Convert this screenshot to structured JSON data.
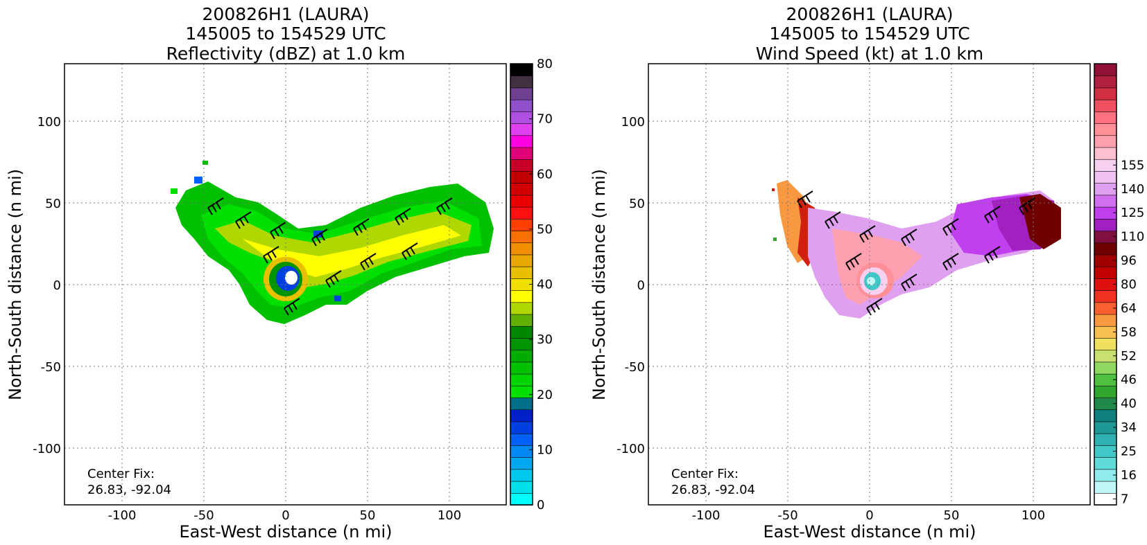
{
  "chart_data": [
    {
      "type": "heatmap",
      "title_lines": [
        "200826H1 (LAURA)",
        "145005 to 154529 UTC",
        "Reflectivity (dBZ) at 1.0 km"
      ],
      "xlabel": "East-West distance (n mi)",
      "ylabel": "North-South distance (n mi)",
      "xlim": [
        -135,
        135
      ],
      "ylim": [
        -135,
        135
      ],
      "xticks": [
        -100,
        -50,
        0,
        50,
        100
      ],
      "yticks": [
        -100,
        -50,
        0,
        50,
        100
      ],
      "grid": true,
      "annotation": [
        "Center Fix:",
        "26.83, -92.04"
      ],
      "colorbar": {
        "range": [
          0,
          80
        ],
        "ticks": [
          0,
          10,
          20,
          30,
          40,
          50,
          60,
          70,
          80
        ],
        "colors": [
          "#00ffff",
          "#00e0e8",
          "#00c8ec",
          "#00a8f0",
          "#0088f4",
          "#0060f8",
          "#0040e0",
          "#0020c8",
          "#007088",
          "#00e000",
          "#00d400",
          "#00c000",
          "#00ac00",
          "#009400",
          "#008800",
          "#60b000",
          "#b0d800",
          "#ffff00",
          "#f0e000",
          "#e8c000",
          "#e8a800",
          "#f09000",
          "#f87000",
          "#ff4000",
          "#ff1010",
          "#e80000",
          "#d00000",
          "#c00000",
          "#c80028",
          "#e00078",
          "#ff00e0",
          "#e040f0",
          "#b050e0",
          "#9050c8",
          "#704090",
          "#403040",
          "#000000"
        ]
      },
      "data_summary": "Radar reflectivity field around hurricane eye; 20-40 dBZ spiral bands extending east-northeast, eye near (0,0)"
    },
    {
      "type": "heatmap",
      "title_lines": [
        "200826H1 (LAURA)",
        "145005 to 154529 UTC",
        "Wind Speed (kt) at 1.0 km"
      ],
      "xlabel": "East-West distance (n mi)",
      "ylabel": "North-South distance (n mi)",
      "xlim": [
        -135,
        135
      ],
      "ylim": [
        -135,
        135
      ],
      "xticks": [
        -100,
        -50,
        0,
        50,
        100
      ],
      "yticks": [
        -100,
        -50,
        0,
        50,
        100
      ],
      "grid": true,
      "annotation": [
        "Center Fix:",
        "26.83, -92.04"
      ],
      "colorbar": {
        "tick_labels": [
          "7",
          "16",
          "25",
          "34",
          "40",
          "46",
          "52",
          "58",
          "64",
          "80",
          "96",
          "110",
          "125",
          "140",
          "155"
        ],
        "tick_bins": [
          0,
          2,
          4,
          6,
          8,
          10,
          12,
          14,
          16,
          18,
          20,
          22,
          24,
          26,
          28
        ],
        "colors": [
          "#ffffff",
          "#c0f8f8",
          "#90ecec",
          "#60dada",
          "#40c8c8",
          "#30b0b0",
          "#209898",
          "#108080",
          "#208848",
          "#30a830",
          "#50c040",
          "#90d860",
          "#c8e070",
          "#f0e060",
          "#f8c050",
          "#f89840",
          "#f86030",
          "#f03020",
          "#e01010",
          "#c00000",
          "#a00000",
          "#700000",
          "#801040",
          "#a020c0",
          "#c040f0",
          "#d070f0",
          "#e0a0f0",
          "#f0c0f0",
          "#f8d0f0",
          "#ffc0d0",
          "#ffa0b0",
          "#ff9098",
          "#ff7080",
          "#f05060",
          "#d03040",
          "#b02040",
          "#901038"
        ]
      },
      "data_summary": "Wind speed field around hurricane eye; maximum winds over 125 kt northeast of center, weak winds in eye"
    }
  ]
}
